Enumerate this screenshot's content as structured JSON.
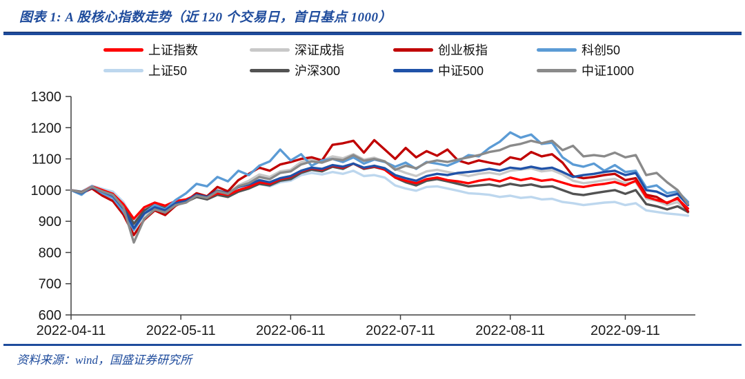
{
  "header": {
    "title": "图表 1: A 股核心指数走势（近 120 个交易日，首日基点 1000）"
  },
  "footer": {
    "source": "资料来源：wind，国盛证券研究所"
  },
  "colors": {
    "accent_blue": "#1E4B9C",
    "axis": "#3F3F3F",
    "tick_text": "#1A1A1A"
  },
  "chart_data": {
    "type": "line",
    "title": "A股核心指数走势（近120个交易日，首日基点1000）",
    "base_point": 1000,
    "ylim": [
      600,
      1300
    ],
    "ytick_step": 100,
    "x_domain_days": [
      0,
      119
    ],
    "sample_step_days": 2,
    "grid": false,
    "legend_position": "top",
    "x_ticks": [
      {
        "day": 0,
        "label": "2022-04-11"
      },
      {
        "day": 21,
        "label": "2022-05-11"
      },
      {
        "day": 42,
        "label": "2022-06-11"
      },
      {
        "day": 63,
        "label": "2022-07-11"
      },
      {
        "day": 84,
        "label": "2022-08-11"
      },
      {
        "day": 106,
        "label": "2022-09-11"
      }
    ],
    "draw_order": [
      4,
      1,
      5,
      2,
      0,
      3,
      6,
      7
    ],
    "series": [
      {
        "name": "上证指数",
        "color": "#FE0000",
        "values": [
          1000,
          992,
          1012,
          1000,
          988,
          955,
          908,
          945,
          960,
          950,
          965,
          970,
          985,
          975,
          990,
          985,
          1000,
          1010,
          1025,
          1020,
          1035,
          1042,
          1060,
          1070,
          1065,
          1078,
          1072,
          1085,
          1070,
          1076,
          1065,
          1040,
          1030,
          1022,
          1035,
          1040,
          1032,
          1028,
          1022,
          1030,
          1035,
          1028,
          1040,
          1032,
          1038,
          1030,
          1034,
          1024,
          1014,
          1010,
          1016,
          1020,
          1026,
          1015,
          1030,
          978,
          968,
          960,
          972,
          941
        ]
      },
      {
        "name": "深证成指",
        "color": "#C8C8C8",
        "values": [
          1000,
          988,
          1008,
          992,
          978,
          938,
          872,
          920,
          945,
          932,
          955,
          962,
          985,
          975,
          1000,
          990,
          1015,
          1030,
          1050,
          1042,
          1060,
          1065,
          1090,
          1100,
          1095,
          1108,
          1102,
          1115,
          1098,
          1104,
          1092,
          1068,
          1055,
          1045,
          1060,
          1065,
          1058,
          1052,
          1045,
          1052,
          1056,
          1050,
          1062,
          1066,
          1070,
          1060,
          1064,
          1050,
          1030,
          1022,
          1026,
          1032,
          1036,
          1022,
          1026,
          972,
          966,
          952,
          962,
          928
        ]
      },
      {
        "name": "创业板指",
        "color": "#C00000",
        "values": [
          1000,
          990,
          1005,
          982,
          965,
          922,
          856,
          905,
          935,
          920,
          950,
          965,
          990,
          980,
          1010,
          996,
          1032,
          1052,
          1072,
          1062,
          1082,
          1090,
          1100,
          1105,
          1095,
          1145,
          1150,
          1158,
          1120,
          1160,
          1130,
          1100,
          1135,
          1105,
          1125,
          1110,
          1130,
          1095,
          1085,
          1095,
          1088,
          1082,
          1105,
          1098,
          1122,
          1108,
          1115,
          1088,
          1045,
          1038,
          1042,
          1048,
          1052,
          1032,
          1038,
          985,
          978,
          958,
          975,
          932
        ]
      },
      {
        "name": "科创50",
        "color": "#5B9BD5",
        "values": [
          1000,
          985,
          1012,
          990,
          975,
          932,
          872,
          925,
          952,
          938,
          968,
          990,
          1020,
          1012,
          1042,
          1028,
          1062,
          1048,
          1078,
          1092,
          1130,
          1095,
          1115,
          1078,
          1095,
          1100,
          1090,
          1105,
          1085,
          1098,
          1090,
          1075,
          1088,
          1068,
          1090,
          1085,
          1078,
          1092,
          1112,
          1108,
          1135,
          1155,
          1185,
          1168,
          1178,
          1148,
          1152,
          1105,
          1082,
          1075,
          1085,
          1062,
          1080,
          1058,
          1062,
          1008,
          1015,
          990,
          996,
          962
        ]
      },
      {
        "name": "上证50",
        "color": "#BDD7EE",
        "values": [
          1000,
          996,
          1014,
          1004,
          995,
          962,
          905,
          940,
          955,
          945,
          960,
          965,
          980,
          972,
          988,
          980,
          995,
          1005,
          1020,
          1012,
          1025,
          1030,
          1048,
          1055,
          1050,
          1058,
          1052,
          1062,
          1045,
          1048,
          1040,
          1015,
          1005,
          998,
          1010,
          1012,
          1005,
          998,
          990,
          988,
          985,
          978,
          982,
          975,
          978,
          970,
          972,
          962,
          958,
          952,
          956,
          960,
          962,
          952,
          958,
          935,
          930,
          925,
          922,
          918
        ]
      },
      {
        "name": "沪深300",
        "color": "#525252",
        "values": [
          1000,
          994,
          1010,
          998,
          988,
          952,
          892,
          935,
          952,
          942,
          958,
          962,
          978,
          970,
          985,
          978,
          995,
          1005,
          1020,
          1015,
          1030,
          1035,
          1055,
          1065,
          1060,
          1075,
          1068,
          1085,
          1068,
          1074,
          1066,
          1040,
          1025,
          1015,
          1030,
          1035,
          1028,
          1020,
          1012,
          1015,
          1018,
          1012,
          1020,
          1014,
          1018,
          1010,
          1012,
          1000,
          988,
          984,
          990,
          995,
          1000,
          988,
          1000,
          955,
          948,
          938,
          948,
          930
        ]
      },
      {
        "name": "中证500",
        "color": "#2052A8",
        "values": [
          1000,
          990,
          1008,
          995,
          982,
          942,
          878,
          925,
          945,
          935,
          958,
          965,
          985,
          978,
          998,
          990,
          1010,
          1018,
          1032,
          1025,
          1038,
          1045,
          1062,
          1072,
          1068,
          1080,
          1075,
          1085,
          1072,
          1078,
          1070,
          1048,
          1038,
          1030,
          1045,
          1052,
          1048,
          1055,
          1058,
          1062,
          1068,
          1062,
          1072,
          1068,
          1075,
          1068,
          1072,
          1058,
          1042,
          1048,
          1052,
          1058,
          1062,
          1048,
          1055,
          1000,
          995,
          980,
          988,
          952
        ]
      },
      {
        "name": "中证1000",
        "color": "#8A8A8A",
        "values": [
          1000,
          992,
          1010,
          996,
          985,
          945,
          832,
          908,
          938,
          928,
          952,
          960,
          982,
          975,
          996,
          988,
          1012,
          1022,
          1042,
          1035,
          1055,
          1060,
          1082,
          1092,
          1088,
          1100,
          1096,
          1112,
          1094,
          1100,
          1092,
          1065,
          1078,
          1070,
          1088,
          1095,
          1090,
          1098,
          1105,
          1112,
          1122,
          1128,
          1142,
          1148,
          1158,
          1150,
          1158,
          1128,
          1142,
          1108,
          1112,
          1108,
          1120,
          1105,
          1112,
          1048,
          1055,
          1025,
          1000,
          955
        ]
      }
    ]
  }
}
